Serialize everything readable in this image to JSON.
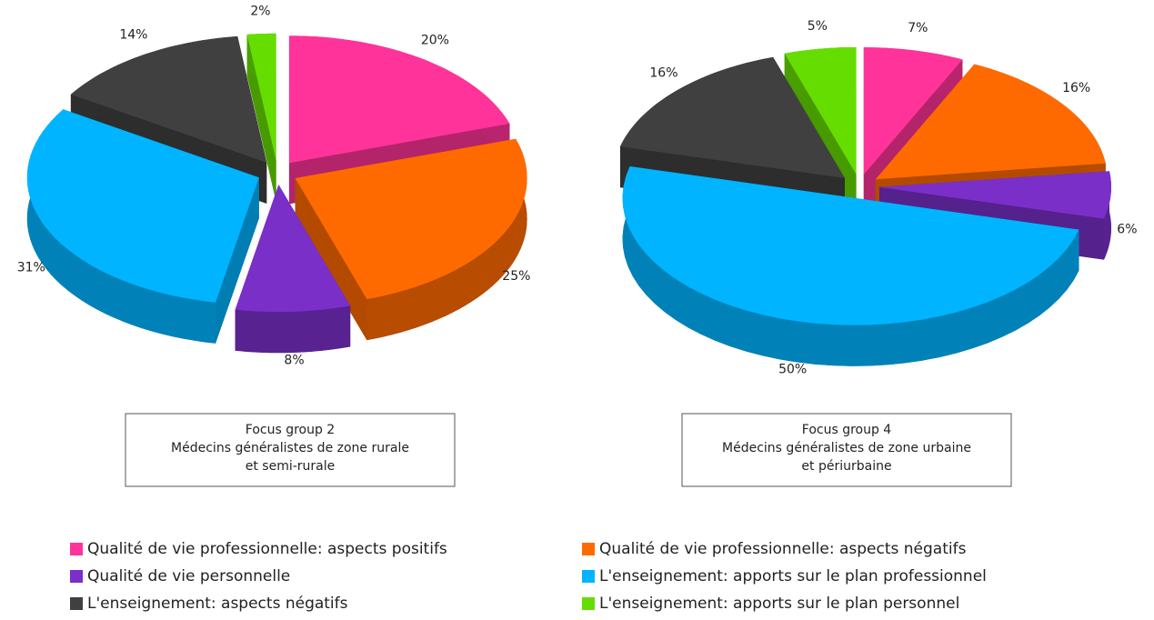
{
  "legend": [
    {
      "name": "Qualité de vie professionnelle: aspects positifs",
      "color": "#ff3399"
    },
    {
      "name": "Qualité de vie professionnelle: aspects négatifs",
      "color": "#ff6a00"
    },
    {
      "name": "Qualité de vie personnelle",
      "color": "#7a2fc9"
    },
    {
      "name": "L'enseignement: apports sur le plan professionnel",
      "color": "#00b4ff"
    },
    {
      "name": "L'enseignement: aspects négatifs",
      "color": "#404040"
    },
    {
      "name": "L'enseignement: apports sur le plan personnel",
      "color": "#66dd00"
    }
  ],
  "chart_data": [
    {
      "type": "pie",
      "title": "Focus group 2",
      "subtitle": [
        "Médecins généralistes de zone rurale",
        "et semi-rurale"
      ],
      "values": [
        20,
        25,
        8,
        31,
        14,
        2
      ],
      "value_labels": [
        "20%",
        "25%",
        "8%",
        "31%",
        "14%",
        "2%"
      ]
    },
    {
      "type": "pie",
      "title": "Focus group 4",
      "subtitle": [
        "Médecins généralistes de zone urbaine",
        "et périurbaine"
      ],
      "values": [
        7,
        16,
        6,
        50,
        16,
        5
      ],
      "value_labels": [
        "7%",
        "16%",
        "6%",
        "50%",
        "16%",
        "5%"
      ]
    }
  ]
}
